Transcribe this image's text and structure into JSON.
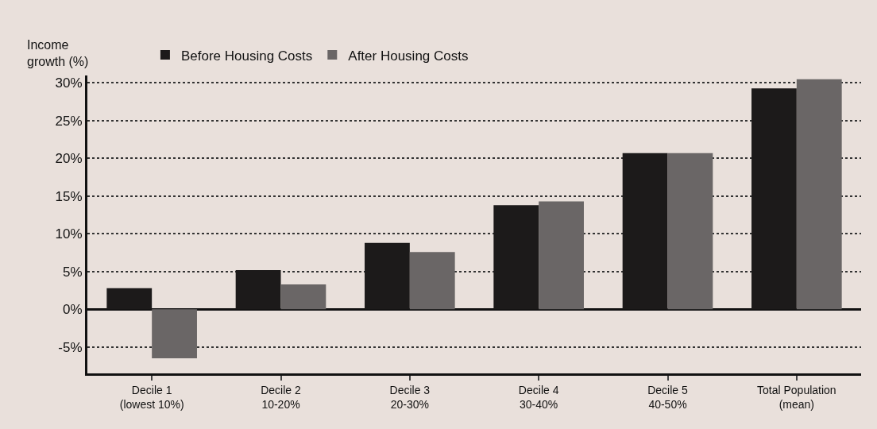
{
  "chart_data": {
    "type": "bar",
    "ylabel": "Income\ngrowth (%)",
    "categories": [
      "Decile 1\n(lowest 10%)",
      "Decile 2\n10-20%",
      "Decile 3\n20-30%",
      "Decile 4\n30-40%",
      "Decile 5\n40-50%",
      "Total Population\n(mean)"
    ],
    "series": [
      {
        "name": "Before Housing Costs",
        "color": "#1c1a1a",
        "values": [
          2.8,
          5.2,
          8.8,
          13.8,
          20.7,
          29.3
        ]
      },
      {
        "name": "After Housing Costs",
        "color": "#6a6666",
        "values": [
          -6.5,
          3.3,
          7.6,
          14.3,
          20.7,
          30.5
        ]
      }
    ],
    "ylim": [
      -8.5,
      31
    ],
    "yticks": [
      {
        "value": -5,
        "label": "-5%"
      },
      {
        "value": 0,
        "label": "0%"
      },
      {
        "value": 5,
        "label": "5%"
      },
      {
        "value": 10,
        "label": "10%"
      },
      {
        "value": 15,
        "label": "15%"
      },
      {
        "value": 20,
        "label": "20%"
      },
      {
        "value": 25,
        "label": "25%"
      },
      {
        "value": 30,
        "label": "30%"
      }
    ],
    "grid": "y",
    "legend": "top left",
    "line_style": "dotted"
  }
}
